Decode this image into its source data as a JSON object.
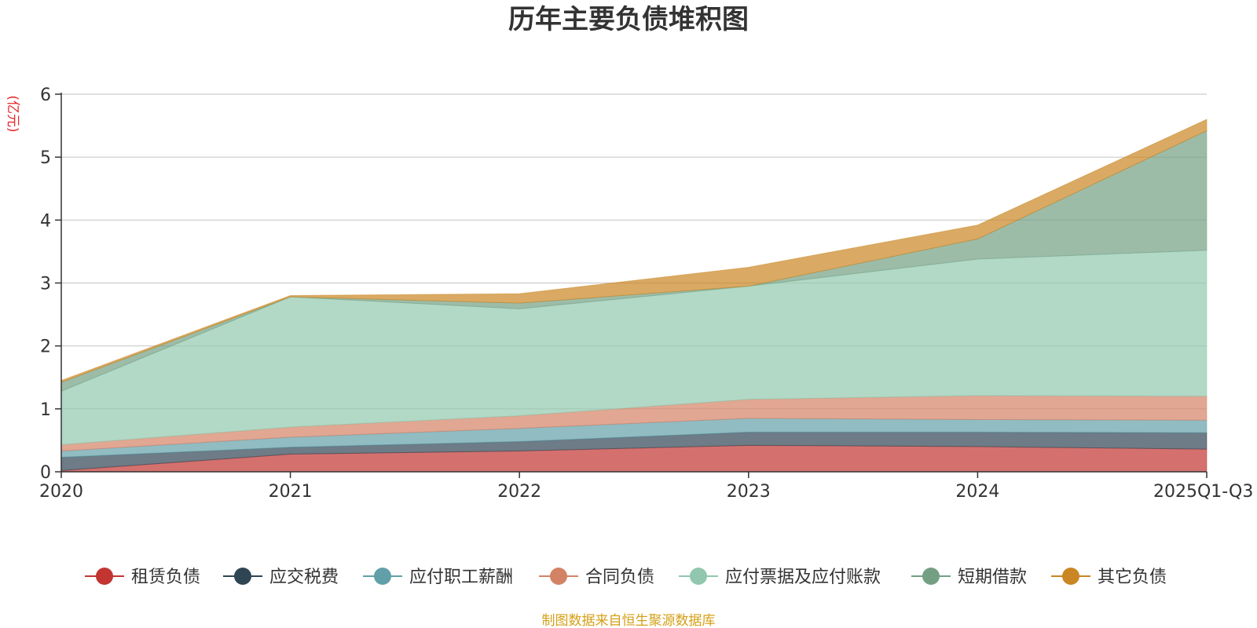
{
  "chart_data": {
    "type": "area",
    "stacked": true,
    "title": "历年主要负债堆积图",
    "ylabel": "(亿元)",
    "xlabel": "",
    "ylim": [
      0,
      6
    ],
    "yticks": [
      "0",
      "1",
      "2",
      "3",
      "4",
      "5",
      "6"
    ],
    "categories": [
      "2020",
      "2021",
      "2022",
      "2023",
      "2024",
      "2025Q1-Q3"
    ],
    "grid": true,
    "legend_position": "bottom",
    "series": [
      {
        "name": "租赁负债",
        "color": "#c23531",
        "values": [
          0.02,
          0.28,
          0.33,
          0.42,
          0.4,
          0.36
        ]
      },
      {
        "name": "应交税费",
        "color": "#2f4554",
        "values": [
          0.21,
          0.11,
          0.15,
          0.21,
          0.23,
          0.26
        ]
      },
      {
        "name": "应付职工薪酬",
        "color": "#61a0a8",
        "values": [
          0.1,
          0.16,
          0.21,
          0.22,
          0.2,
          0.2
        ]
      },
      {
        "name": "合同负债",
        "color": "#d48265",
        "values": [
          0.1,
          0.16,
          0.2,
          0.3,
          0.38,
          0.38
        ]
      },
      {
        "name": "应付票据及应付账款",
        "color": "#91c7ae",
        "values": [
          0.85,
          2.07,
          1.7,
          1.8,
          2.17,
          2.32
        ]
      },
      {
        "name": "短期借款",
        "color": "#749f83",
        "values": [
          0.14,
          0.0,
          0.09,
          0.0,
          0.32,
          1.9
        ]
      },
      {
        "name": "其它负债",
        "color": "#ca8622",
        "values": [
          0.03,
          0.02,
          0.15,
          0.3,
          0.22,
          0.18
        ]
      }
    ],
    "source_note": "制图数据来自恒生聚源数据库"
  }
}
